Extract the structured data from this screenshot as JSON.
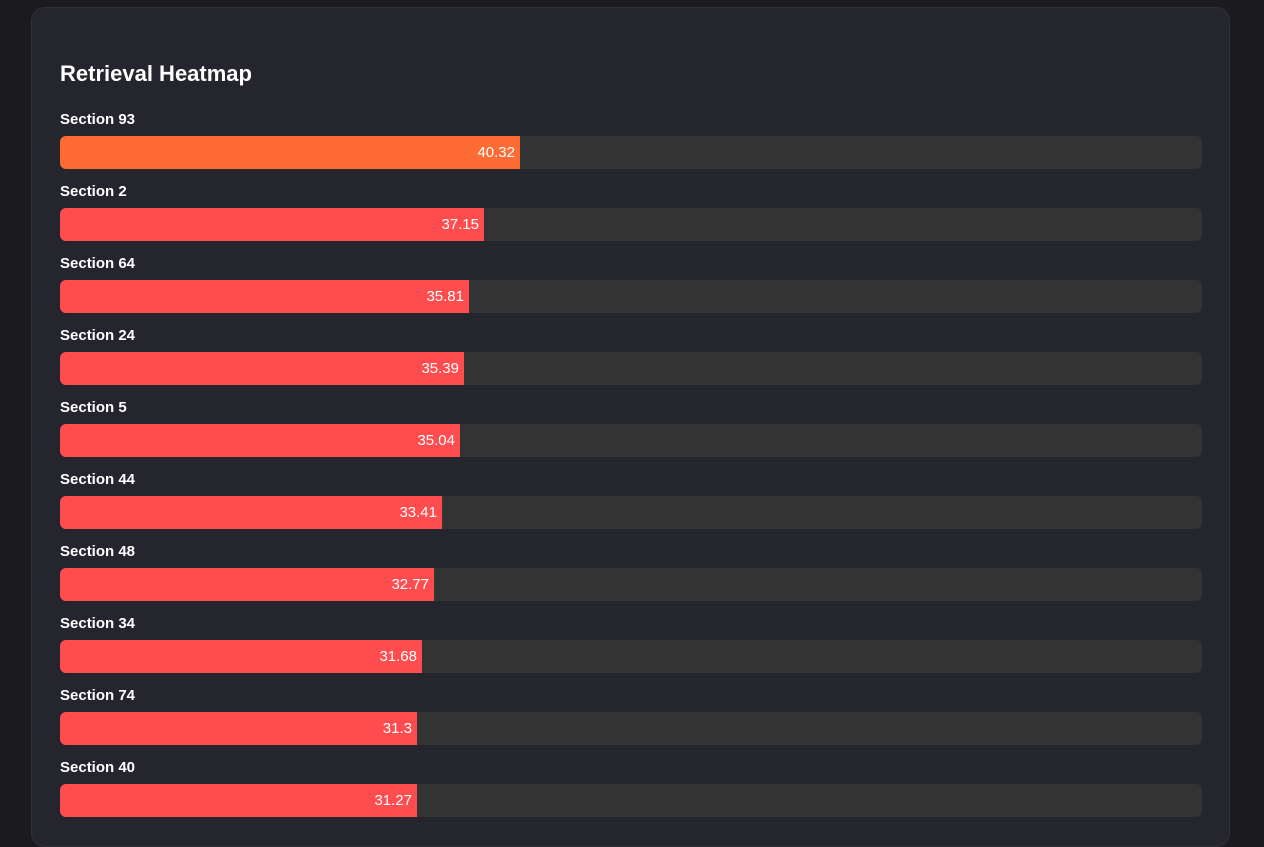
{
  "title": "Retrieval Heatmap",
  "colors": {
    "highlight": "#ff6b35",
    "bar": "#ff4d4f",
    "track": "#333333"
  },
  "chart_data": {
    "type": "bar",
    "orientation": "horizontal",
    "title": "Retrieval Heatmap",
    "xlim": [
      0,
      100
    ],
    "categories": [
      "Section 93",
      "Section 2",
      "Section 64",
      "Section 24",
      "Section 5",
      "Section 44",
      "Section 48",
      "Section 34",
      "Section 74",
      "Section 40"
    ],
    "values": [
      40.32,
      37.15,
      35.81,
      35.39,
      35.04,
      33.41,
      32.77,
      31.68,
      31.3,
      31.27
    ],
    "value_labels": [
      "40.32",
      "37.15",
      "35.81",
      "35.39",
      "35.04",
      "33.41",
      "32.77",
      "31.68",
      "31.3",
      "31.27"
    ]
  }
}
